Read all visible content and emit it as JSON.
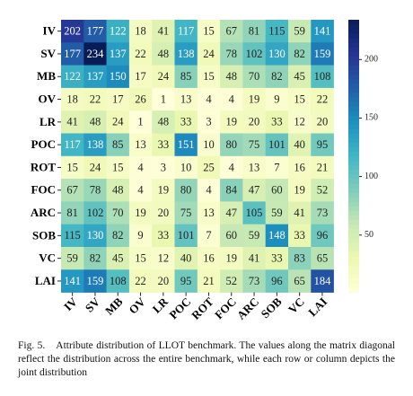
{
  "chart_data": {
    "type": "heatmap",
    "x_categories": [
      "IV",
      "SV",
      "MB",
      "OV",
      "LR",
      "POC",
      "ROT",
      "FOC",
      "ARC",
      "SOB",
      "VC",
      "LAI"
    ],
    "y_categories": [
      "IV",
      "SV",
      "MB",
      "OV",
      "LR",
      "POC",
      "ROT",
      "FOC",
      "ARC",
      "SOB",
      "VC",
      "LAI"
    ],
    "values": [
      [
        202,
        177,
        122,
        18,
        41,
        117,
        15,
        67,
        81,
        115,
        59,
        141
      ],
      [
        177,
        234,
        137,
        22,
        48,
        138,
        24,
        78,
        102,
        130,
        82,
        159
      ],
      [
        122,
        137,
        150,
        17,
        24,
        85,
        15,
        48,
        70,
        82,
        45,
        108
      ],
      [
        18,
        22,
        17,
        26,
        1,
        13,
        4,
        4,
        19,
        9,
        15,
        22
      ],
      [
        41,
        48,
        24,
        1,
        48,
        33,
        3,
        19,
        20,
        33,
        12,
        20
      ],
      [
        117,
        138,
        85,
        13,
        33,
        151,
        10,
        80,
        75,
        101,
        40,
        95
      ],
      [
        15,
        24,
        15,
        4,
        3,
        10,
        25,
        4,
        13,
        7,
        16,
        21
      ],
      [
        67,
        78,
        48,
        4,
        19,
        80,
        4,
        84,
        47,
        60,
        19,
        52
      ],
      [
        81,
        102,
        70,
        19,
        20,
        75,
        13,
        47,
        105,
        59,
        41,
        73
      ],
      [
        115,
        130,
        82,
        9,
        33,
        101,
        7,
        60,
        59,
        148,
        33,
        96
      ],
      [
        59,
        82,
        45,
        15,
        12,
        40,
        16,
        19,
        41,
        33,
        83,
        65
      ],
      [
        141,
        159,
        108,
        22,
        20,
        95,
        21,
        52,
        73,
        96,
        65,
        184
      ]
    ],
    "colormap": "YlGnBu",
    "zlim": [
      1,
      234
    ],
    "zticks": [
      50,
      100,
      150,
      200
    ]
  },
  "caption": {
    "label": "Fig. 5.",
    "text": "Attribute distribution of LLOT benchmark. The values along the matrix diagonal reflect the distribution across the entire benchmark, while each row or column depicts the joint distribution"
  }
}
